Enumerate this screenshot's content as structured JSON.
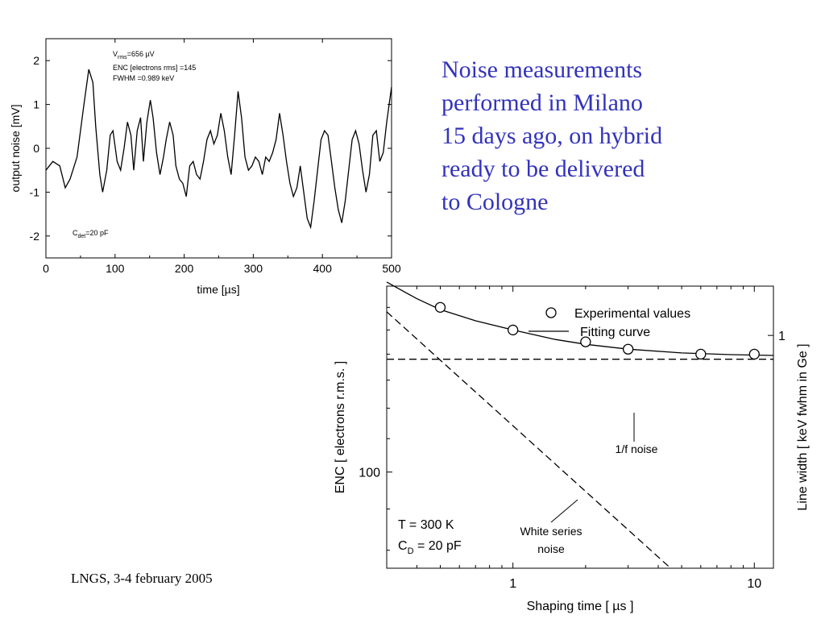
{
  "slide": {
    "title_lines": [
      "Noise measurements",
      "performed in Milano",
      "15 days ago, on hybrid",
      "ready to be delivered",
      "to Cologne"
    ],
    "footer": "LNGS, 3-4 february 2005",
    "title_color": "#3333bb"
  },
  "chart_data": [
    {
      "type": "line",
      "xlabel": "time [µs]",
      "ylabel": "output noise [mV]",
      "xlim": [
        0,
        500
      ],
      "ylim": [
        -2.5,
        2.5
      ],
      "xticks": [
        0,
        100,
        200,
        300,
        400,
        500
      ],
      "yticks": [
        -2,
        -1,
        0,
        1,
        2
      ],
      "annotations": {
        "vrms_sym": "V",
        "vrms_sub": "rms",
        "vrms_val": "=656 µV",
        "enc": "ENC [electrons rms] =145",
        "fwhm": "FWHM =0.989 keV",
        "cdet_sym": "C",
        "cdet_sub": "det",
        "cdet_val": "=20 pF"
      },
      "series": [
        {
          "x": [
            0,
            10,
            20,
            28,
            35,
            45,
            55,
            62,
            68,
            72,
            78,
            82,
            88,
            93,
            97,
            103,
            108,
            113,
            118,
            123,
            127,
            132,
            137,
            141,
            146,
            151,
            155,
            160,
            165,
            170,
            174,
            179,
            184,
            188,
            193,
            198,
            203,
            208,
            213,
            218,
            223,
            228,
            233,
            238,
            243,
            248,
            253,
            258,
            263,
            268,
            273,
            278,
            283,
            288,
            293,
            298,
            303,
            308,
            313,
            318,
            323,
            328,
            333,
            338,
            343,
            348,
            353,
            358,
            363,
            368,
            373,
            378,
            383,
            388,
            393,
            398,
            403,
            408,
            413,
            418,
            423,
            428,
            433,
            438,
            443,
            448,
            453,
            458,
            463,
            468,
            473,
            478,
            483,
            488,
            493,
            500
          ],
          "y": [
            -0.5,
            -0.3,
            -0.4,
            -0.9,
            -0.7,
            -0.2,
            1.0,
            1.8,
            1.5,
            0.5,
            -0.6,
            -1.0,
            -0.5,
            0.3,
            0.4,
            -0.3,
            -0.5,
            0.0,
            0.6,
            0.3,
            -0.5,
            0.4,
            0.7,
            -0.3,
            0.6,
            1.1,
            0.7,
            -0.1,
            -0.6,
            -0.2,
            0.2,
            0.6,
            0.3,
            -0.4,
            -0.7,
            -0.8,
            -1.1,
            -0.4,
            -0.3,
            -0.6,
            -0.7,
            -0.3,
            0.2,
            0.4,
            0.1,
            0.3,
            0.8,
            0.4,
            -0.2,
            -0.6,
            0.3,
            1.3,
            0.7,
            -0.2,
            -0.5,
            -0.4,
            -0.2,
            -0.3,
            -0.6,
            -0.2,
            -0.3,
            -0.1,
            0.2,
            0.8,
            0.3,
            -0.3,
            -0.8,
            -1.1,
            -0.9,
            -0.4,
            -1.0,
            -1.6,
            -1.8,
            -1.2,
            -0.5,
            0.2,
            0.4,
            0.3,
            -0.3,
            -0.9,
            -1.4,
            -1.7,
            -1.2,
            -0.5,
            0.2,
            0.4,
            0.1,
            -0.5,
            -1.0,
            -0.6,
            0.3,
            0.4,
            -0.3,
            -0.1,
            0.6,
            1.4
          ]
        }
      ]
    },
    {
      "type": "line",
      "xscale": "log",
      "yscale": "log",
      "xlabel": "Shaping time [ µs ]",
      "ylabel": "ENC [ electrons r.m.s. ]",
      "y2label": "Line width [ keV fwhm in Ge ]",
      "xlim": [
        0.3,
        12
      ],
      "ylim": [
        76,
        170
      ],
      "xticks": [
        1,
        10
      ],
      "yticks": [
        100
      ],
      "y2ticks": [
        {
          "label": "1",
          "value": 145
        }
      ],
      "legend": {
        "position": "top-right",
        "markers_label": "Experimental values",
        "line_label": "Fitting curve"
      },
      "annotations": {
        "one_over_f": "1/f noise",
        "white_line1": "White series",
        "white_line2": "noise",
        "temperature": "T = 300 K",
        "cd_sym": "C",
        "cd_sub": "D",
        "cd_val": " = 20 pF"
      },
      "series": [
        {
          "name": "Experimental values",
          "style": "markers",
          "x": [
            0.5,
            1,
            2,
            3,
            6,
            10
          ],
          "y": [
            160,
            150,
            145,
            142,
            140,
            140
          ]
        },
        {
          "name": "Fitting curve",
          "style": "solid",
          "x": [
            0.3,
            0.4,
            0.5,
            0.7,
            1,
            1.5,
            2,
            3,
            5,
            8,
            12
          ],
          "y": [
            172,
            164,
            159,
            154,
            150,
            146,
            144,
            142,
            140.5,
            139.8,
            139.5
          ]
        },
        {
          "style": "dashed",
          "x": [
            0.3,
            12
          ],
          "y": [
            138,
            138
          ]
        },
        {
          "style": "dashed",
          "x": [
            0.3,
            4.5
          ],
          "y": [
            158,
            76
          ]
        }
      ]
    }
  ]
}
